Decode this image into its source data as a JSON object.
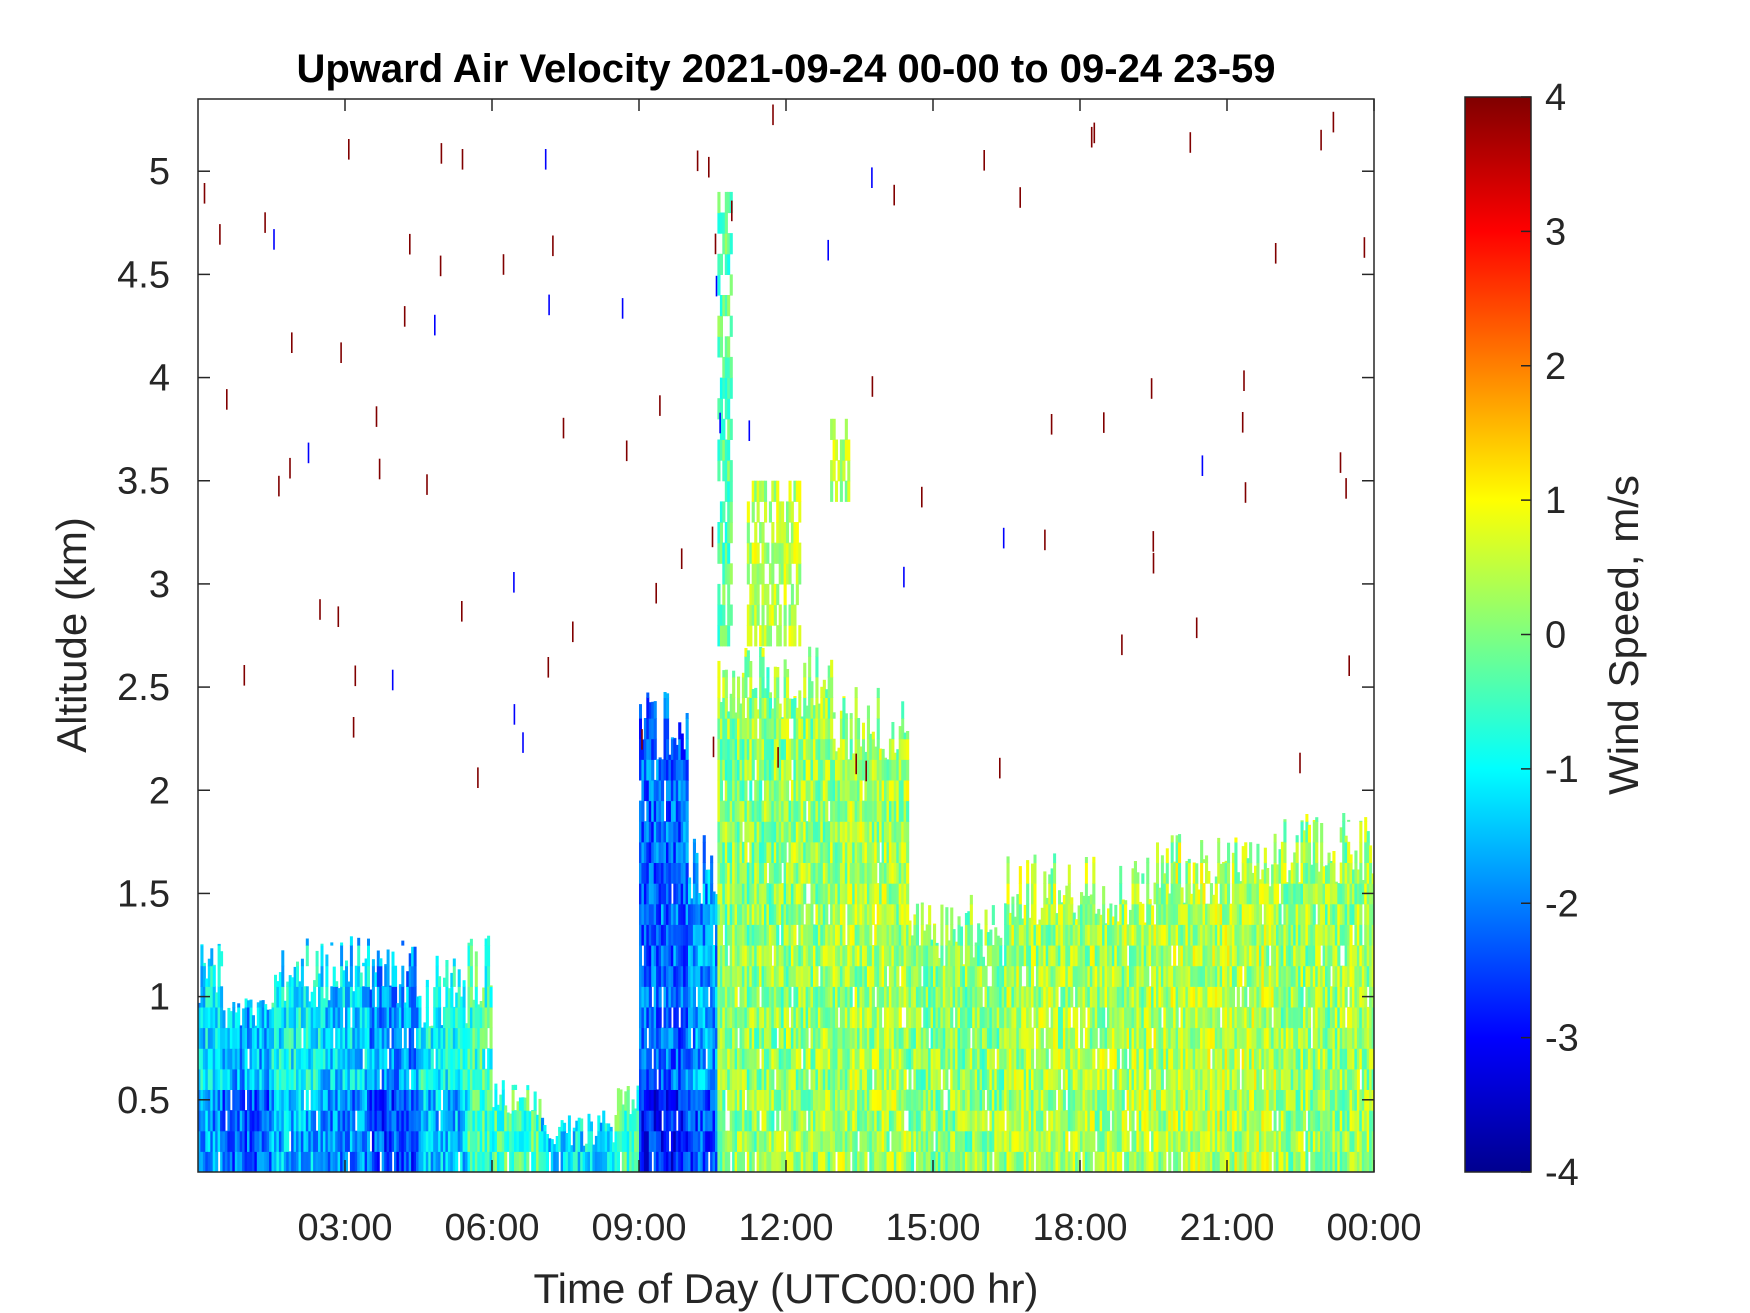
{
  "chart_data": {
    "type": "heatmap",
    "title": "Upward Air Velocity 2021-09-24 00-00 to 09-24 23-59",
    "xlabel": "Time of Day (UTC00:00 hr)",
    "ylabel": "Altitude (km)",
    "colorbar_label": "Wind Speed, m/s",
    "colormap": "jet",
    "xlim_hours": [
      0,
      24
    ],
    "ylim_km": [
      0.15,
      5.35
    ],
    "clim": [
      -4,
      4
    ],
    "x_ticks": [
      {
        "value": 3,
        "label": "03:00"
      },
      {
        "value": 6,
        "label": "06:00"
      },
      {
        "value": 9,
        "label": "09:00"
      },
      {
        "value": 12,
        "label": "12:00"
      },
      {
        "value": 15,
        "label": "15:00"
      },
      {
        "value": 18,
        "label": "18:00"
      },
      {
        "value": 21,
        "label": "21:00"
      },
      {
        "value": 24,
        "label": "00:00"
      }
    ],
    "y_ticks": [
      {
        "value": 0.5,
        "label": "0.5"
      },
      {
        "value": 1,
        "label": "1"
      },
      {
        "value": 1.5,
        "label": "1.5"
      },
      {
        "value": 2,
        "label": "2"
      },
      {
        "value": 2.5,
        "label": "2.5"
      },
      {
        "value": 3,
        "label": "3"
      },
      {
        "value": 3.5,
        "label": "3.5"
      },
      {
        "value": 4,
        "label": "4"
      },
      {
        "value": 4.5,
        "label": "4.5"
      },
      {
        "value": 5,
        "label": "5"
      }
    ],
    "colorbar_ticks": [
      {
        "value": 4,
        "label": "4"
      },
      {
        "value": 3,
        "label": "3"
      },
      {
        "value": 2,
        "label": "2"
      },
      {
        "value": 1,
        "label": "1"
      },
      {
        "value": 0,
        "label": "0"
      },
      {
        "value": -1,
        "label": "-1"
      },
      {
        "value": -2,
        "label": "-2"
      },
      {
        "value": -3,
        "label": "-3"
      },
      {
        "value": -4,
        "label": "-4"
      }
    ],
    "regions": [
      {
        "x_start_hr": 0.0,
        "x_end_hr": 0.5,
        "top_km": 1.3,
        "mean_ms": -1.2
      },
      {
        "x_start_hr": 0.5,
        "x_end_hr": 1.5,
        "top_km": 1.0,
        "mean_ms": -1.6
      },
      {
        "x_start_hr": 1.5,
        "x_end_hr": 2.5,
        "top_km": 1.3,
        "mean_ms": -1.0
      },
      {
        "x_start_hr": 2.5,
        "x_end_hr": 3.5,
        "top_km": 1.3,
        "mean_ms": -1.3
      },
      {
        "x_start_hr": 3.5,
        "x_end_hr": 4.5,
        "top_km": 1.3,
        "mean_ms": -1.8
      },
      {
        "x_start_hr": 4.5,
        "x_end_hr": 5.5,
        "top_km": 1.2,
        "mean_ms": -0.9
      },
      {
        "x_start_hr": 5.5,
        "x_end_hr": 6.0,
        "top_km": 1.3,
        "mean_ms": -0.5
      },
      {
        "x_start_hr": 6.0,
        "x_end_hr": 7.0,
        "top_km": 0.6,
        "mean_ms": -0.4
      },
      {
        "x_start_hr": 7.0,
        "x_end_hr": 8.5,
        "top_km": 0.45,
        "mean_ms": -0.6
      },
      {
        "x_start_hr": 8.5,
        "x_end_hr": 9.0,
        "top_km": 0.6,
        "mean_ms": -0.5
      },
      {
        "x_start_hr": 9.0,
        "x_end_hr": 10.0,
        "top_km": 2.5,
        "mean_ms": -2.2
      },
      {
        "x_start_hr": 10.0,
        "x_end_hr": 10.6,
        "top_km": 1.8,
        "mean_ms": -1.8
      },
      {
        "x_start_hr": 10.6,
        "x_end_hr": 12.0,
        "top_km": 2.7,
        "mean_ms": 0.1
      },
      {
        "x_start_hr": 12.0,
        "x_end_hr": 13.0,
        "top_km": 2.7,
        "mean_ms": 0.2
      },
      {
        "x_start_hr": 13.0,
        "x_end_hr": 14.5,
        "top_km": 2.5,
        "mean_ms": 0.3
      },
      {
        "x_start_hr": 14.5,
        "x_end_hr": 16.5,
        "top_km": 1.5,
        "mean_ms": 0.1
      },
      {
        "x_start_hr": 16.5,
        "x_end_hr": 19.5,
        "top_km": 1.7,
        "mean_ms": 0.3
      },
      {
        "x_start_hr": 19.5,
        "x_end_hr": 22.0,
        "top_km": 1.8,
        "mean_ms": 0.4
      },
      {
        "x_start_hr": 22.0,
        "x_end_hr": 24.0,
        "top_km": 1.9,
        "mean_ms": 0.2
      }
    ],
    "elevated_clouds": [
      {
        "x_start_hr": 11.2,
        "x_end_hr": 12.3,
        "bottom_km": 2.7,
        "top_km": 3.45,
        "mean_ms": 0.5
      },
      {
        "x_start_hr": 12.9,
        "x_end_hr": 13.3,
        "bottom_km": 3.4,
        "top_km": 3.8,
        "mean_ms": 0.4
      },
      {
        "x_start_hr": 10.6,
        "x_end_hr": 10.9,
        "bottom_km": 2.7,
        "top_km": 4.8,
        "mean_ms": -0.3
      }
    ]
  }
}
